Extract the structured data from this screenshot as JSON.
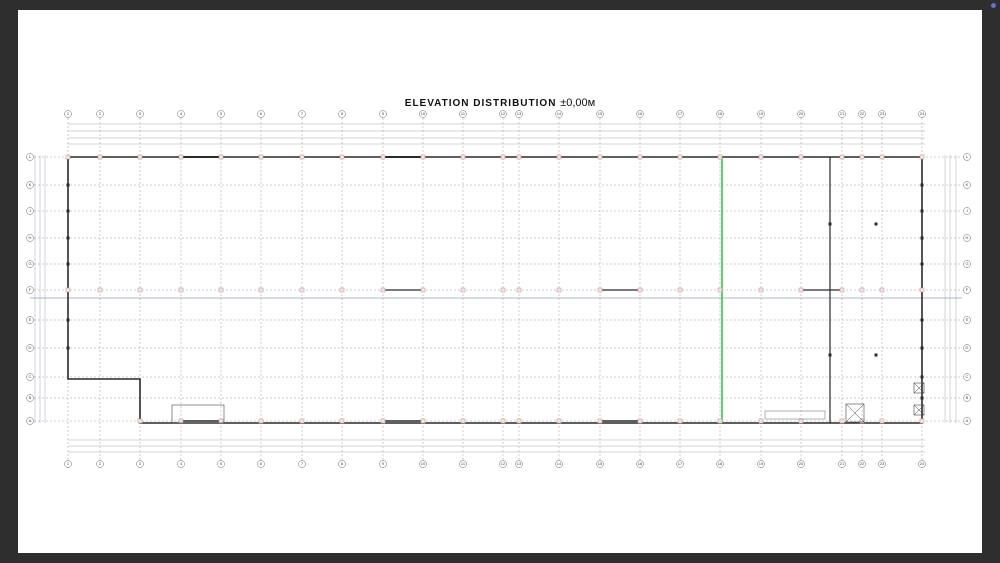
{
  "drawing": {
    "title": "ELEVATION DISTRIBUTION",
    "level": "±0,00м"
  },
  "grid": {
    "columns": [
      "1",
      "2",
      "3",
      "4",
      "5",
      "6",
      "7",
      "8",
      "9",
      "10",
      "11",
      "12",
      "13",
      "14",
      "15",
      "16",
      "17",
      "18",
      "19",
      "20",
      "21",
      "22",
      "23",
      "24"
    ],
    "rows": [
      "L",
      "K",
      "J",
      "H",
      "G",
      "F",
      "E",
      "D",
      "C",
      "B",
      "A"
    ]
  },
  "colors": {
    "background": "#2e2e2e",
    "sheet": "#ffffff",
    "walls": "#2a2a2a",
    "grid_lines": "#9a9a9a",
    "highlight_line": "#2ecc40",
    "axis_line": "#8e9ad8",
    "column_markers": "#c9a0a0"
  }
}
